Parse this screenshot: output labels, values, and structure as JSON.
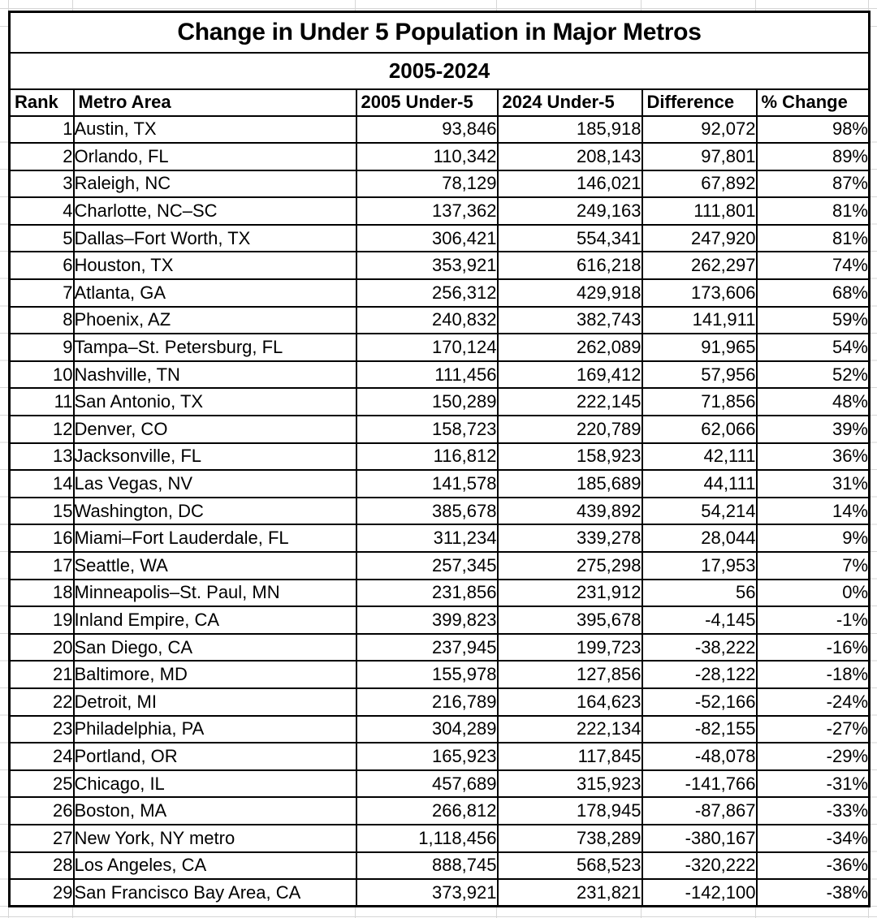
{
  "chart_data": {
    "type": "table",
    "title": "Change in Under 5 Population in Major Metros",
    "subtitle": "2005-2024",
    "columns": [
      "Rank",
      "Metro Area",
      "2005 Under-5",
      "2024 Under-5",
      "Difference",
      "% Change"
    ],
    "rows": [
      [
        "1",
        "Austin, TX",
        "93,846",
        "185,918",
        "92,072",
        "98%"
      ],
      [
        "2",
        "Orlando, FL",
        "110,342",
        "208,143",
        "97,801",
        "89%"
      ],
      [
        "3",
        "Raleigh, NC",
        "78,129",
        "146,021",
        "67,892",
        "87%"
      ],
      [
        "4",
        "Charlotte, NC–SC",
        "137,362",
        "249,163",
        "111,801",
        "81%"
      ],
      [
        "5",
        "Dallas–Fort Worth, TX",
        "306,421",
        "554,341",
        "247,920",
        "81%"
      ],
      [
        "6",
        "Houston, TX",
        "353,921",
        "616,218",
        "262,297",
        "74%"
      ],
      [
        "7",
        "Atlanta, GA",
        "256,312",
        "429,918",
        "173,606",
        "68%"
      ],
      [
        "8",
        "Phoenix, AZ",
        "240,832",
        "382,743",
        "141,911",
        "59%"
      ],
      [
        "9",
        "Tampa–St. Petersburg, FL",
        "170,124",
        "262,089",
        "91,965",
        "54%"
      ],
      [
        "10",
        "Nashville, TN",
        "111,456",
        "169,412",
        "57,956",
        "52%"
      ],
      [
        "11",
        "San Antonio, TX",
        "150,289",
        "222,145",
        "71,856",
        "48%"
      ],
      [
        "12",
        "Denver, CO",
        "158,723",
        "220,789",
        "62,066",
        "39%"
      ],
      [
        "13",
        "Jacksonville, FL",
        "116,812",
        "158,923",
        "42,111",
        "36%"
      ],
      [
        "14",
        "Las Vegas, NV",
        "141,578",
        "185,689",
        "44,111",
        "31%"
      ],
      [
        "15",
        "Washington, DC",
        "385,678",
        "439,892",
        "54,214",
        "14%"
      ],
      [
        "16",
        "Miami–Fort Lauderdale, FL",
        "311,234",
        "339,278",
        "28,044",
        "9%"
      ],
      [
        "17",
        "Seattle, WA",
        "257,345",
        "275,298",
        "17,953",
        "7%"
      ],
      [
        "18",
        "Minneapolis–St. Paul, MN",
        "231,856",
        "231,912",
        "56",
        "0%"
      ],
      [
        "19",
        "Inland Empire, CA",
        "399,823",
        "395,678",
        "-4,145",
        "-1%"
      ],
      [
        "20",
        "San Diego, CA",
        "237,945",
        "199,723",
        "-38,222",
        "-16%"
      ],
      [
        "21",
        "Baltimore, MD",
        "155,978",
        "127,856",
        "-28,122",
        "-18%"
      ],
      [
        "22",
        "Detroit, MI",
        "216,789",
        "164,623",
        "-52,166",
        "-24%"
      ],
      [
        "23",
        "Philadelphia, PA",
        "304,289",
        "222,134",
        "-82,155",
        "-27%"
      ],
      [
        "24",
        "Portland, OR",
        "165,923",
        "117,845",
        "-48,078",
        "-29%"
      ],
      [
        "25",
        "Chicago, IL",
        "457,689",
        "315,923",
        "-141,766",
        "-31%"
      ],
      [
        "26",
        "Boston, MA",
        "266,812",
        "178,945",
        "-87,867",
        "-33%"
      ],
      [
        "27",
        "New York, NY metro",
        "1,118,456",
        "738,289",
        "-380,167",
        "-34%"
      ],
      [
        "28",
        "Los Angeles, CA",
        "888,745",
        "568,523",
        "-320,222",
        "-36%"
      ],
      [
        "29",
        "San Francisco Bay Area, CA",
        "373,921",
        "231,821",
        "-142,100",
        "-38%"
      ]
    ],
    "layout_hints": {
      "grid": "off inside table, faint spreadsheet gridlines in outer margins",
      "number_columns_alignment": "right",
      "metro_column_alignment": "left"
    }
  },
  "style": {
    "background": "#ffffff",
    "table_border_color": "#000000",
    "gridline_color": "#d6d6d6",
    "text_color": "#000000"
  }
}
